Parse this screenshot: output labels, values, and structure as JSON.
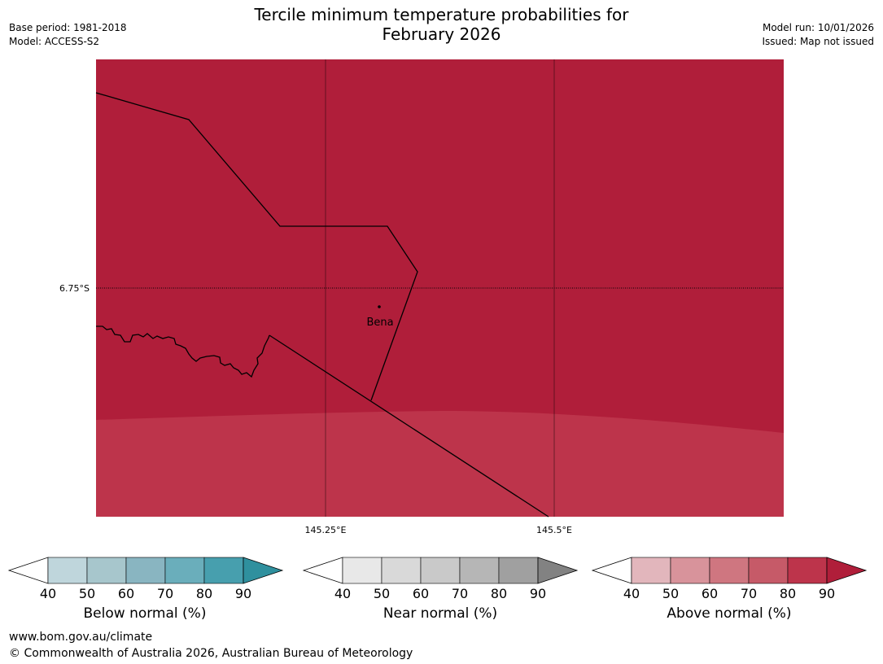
{
  "header": {
    "title_line1": "Tercile minimum temperature probabilities for",
    "title_line2": "February 2026",
    "base_period": "Base period: 1981-2018",
    "model": "Model: ACCESS-S2",
    "model_run": "Model run: 10/01/2026",
    "issued": "Issued: Map not issued"
  },
  "map": {
    "lat_label": "6.75°S",
    "lon_labels": [
      "145.25°E",
      "145.5°E"
    ],
    "place": "Bena",
    "colors": {
      "dominant_class": "#b01e3a",
      "lower_band": "#bd344b"
    }
  },
  "legends": [
    {
      "name": "below",
      "title": "Below normal (%)",
      "ticks": [
        "40",
        "50",
        "60",
        "70",
        "80",
        "90"
      ],
      "colors": [
        "#ffffff",
        "#bfd6dc",
        "#a7c6cc",
        "#89b5c1",
        "#6aaebb",
        "#479fae",
        "#2f909e"
      ]
    },
    {
      "name": "near",
      "title": "Near normal (%)",
      "ticks": [
        "40",
        "50",
        "60",
        "70",
        "80",
        "90"
      ],
      "colors": [
        "#ffffff",
        "#e8e8e8",
        "#d9d9d9",
        "#c9c9c9",
        "#b6b6b6",
        "#a0a0a0",
        "#828282"
      ]
    },
    {
      "name": "above",
      "title": "Above normal (%)",
      "ticks": [
        "40",
        "50",
        "60",
        "70",
        "80",
        "90"
      ],
      "colors": [
        "#ffffff",
        "#e2b6bc",
        "#d8939b",
        "#cf7680",
        "#c65a68",
        "#bd344b",
        "#b01e3a"
      ]
    }
  ],
  "footer": {
    "url": "www.bom.gov.au/climate",
    "copyright": "© Commonwealth of Australia 2026, Australian Bureau of Meteorology"
  }
}
